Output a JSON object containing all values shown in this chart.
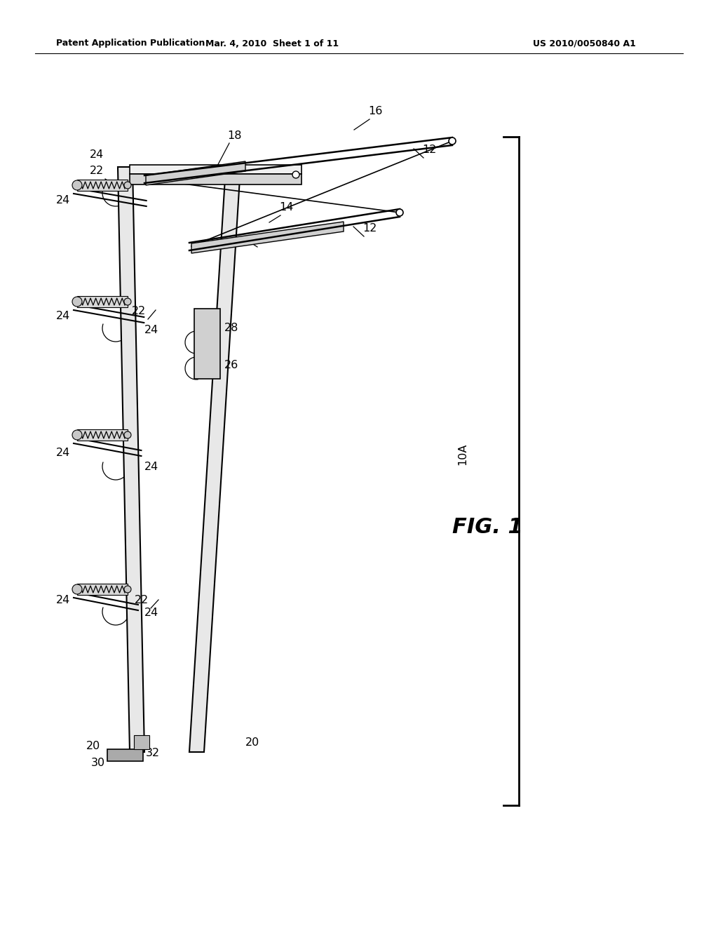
{
  "bg_color": "#ffffff",
  "line_color": "#000000",
  "header_left": "Patent Application Publication",
  "header_mid": "Mar. 4, 2010  Sheet 1 of 11",
  "header_right": "US 2010/0050840 A1",
  "fig_label": "FIG. 1"
}
